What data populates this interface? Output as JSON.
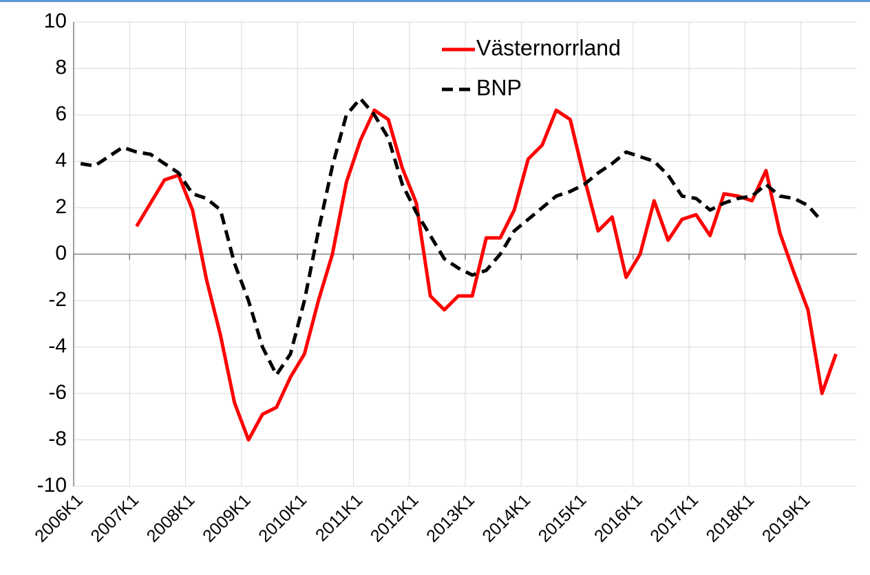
{
  "chart_data": {
    "type": "line",
    "categories": [
      "2006K1",
      null,
      null,
      null,
      "2007K1",
      null,
      null,
      null,
      "2008K1",
      null,
      null,
      null,
      "2009K1",
      null,
      null,
      null,
      "2010K1",
      null,
      null,
      null,
      "2011K1",
      null,
      null,
      null,
      "2012K1",
      null,
      null,
      null,
      "2013K1",
      null,
      null,
      null,
      "2014K1",
      null,
      null,
      null,
      "2015K1",
      null,
      null,
      null,
      "2016K1",
      null,
      null,
      null,
      "2017K1",
      null,
      null,
      null,
      "2018K1",
      null,
      null,
      null,
      "2019K1",
      null,
      null,
      null
    ],
    "series": [
      {
        "name": "Västernorrland",
        "color": "#ff0000",
        "dash": "solid",
        "values": [
          null,
          null,
          null,
          null,
          1.2,
          2.2,
          3.2,
          3.4,
          1.9,
          -1.1,
          -3.5,
          -6.4,
          -8.0,
          -6.9,
          -6.6,
          -5.3,
          -4.3,
          -2.0,
          0.0,
          3.1,
          4.9,
          6.2,
          5.8,
          3.7,
          2.2,
          -1.8,
          -2.4,
          -1.8,
          -1.8,
          0.7,
          0.7,
          1.9,
          4.1,
          4.7,
          6.2,
          5.8,
          3.3,
          1.0,
          1.6,
          -1.0,
          0.0,
          2.3,
          0.6,
          1.5,
          1.7,
          0.8,
          2.6,
          2.5,
          2.3,
          3.6,
          0.9,
          -0.8,
          -2.4,
          -6.0,
          -4.3,
          null
        ]
      },
      {
        "name": "BNP",
        "color": "#000000",
        "dash": "dashed",
        "values": [
          3.9,
          3.8,
          4.2,
          4.6,
          4.4,
          4.3,
          3.9,
          3.5,
          2.6,
          2.4,
          1.9,
          -0.4,
          -2.0,
          -4.0,
          -5.2,
          -4.3,
          -2.0,
          1.0,
          3.8,
          6.0,
          6.7,
          6.0,
          5.0,
          3.0,
          1.8,
          0.8,
          -0.2,
          -0.6,
          -0.9,
          -0.7,
          0.0,
          1.0,
          1.5,
          2.0,
          2.5,
          2.7,
          3.0,
          3.5,
          3.9,
          4.4,
          4.2,
          4.0,
          3.4,
          2.5,
          2.4,
          1.9,
          2.2,
          2.4,
          2.5,
          3.0,
          2.5,
          2.4,
          2.1,
          1.4,
          null,
          null
        ]
      }
    ],
    "ylim": [
      -10,
      10
    ],
    "yticks": [
      -10,
      -8,
      -6,
      -4,
      -2,
      0,
      2,
      4,
      6,
      8,
      10
    ],
    "grid": true,
    "legend": "top-right"
  }
}
